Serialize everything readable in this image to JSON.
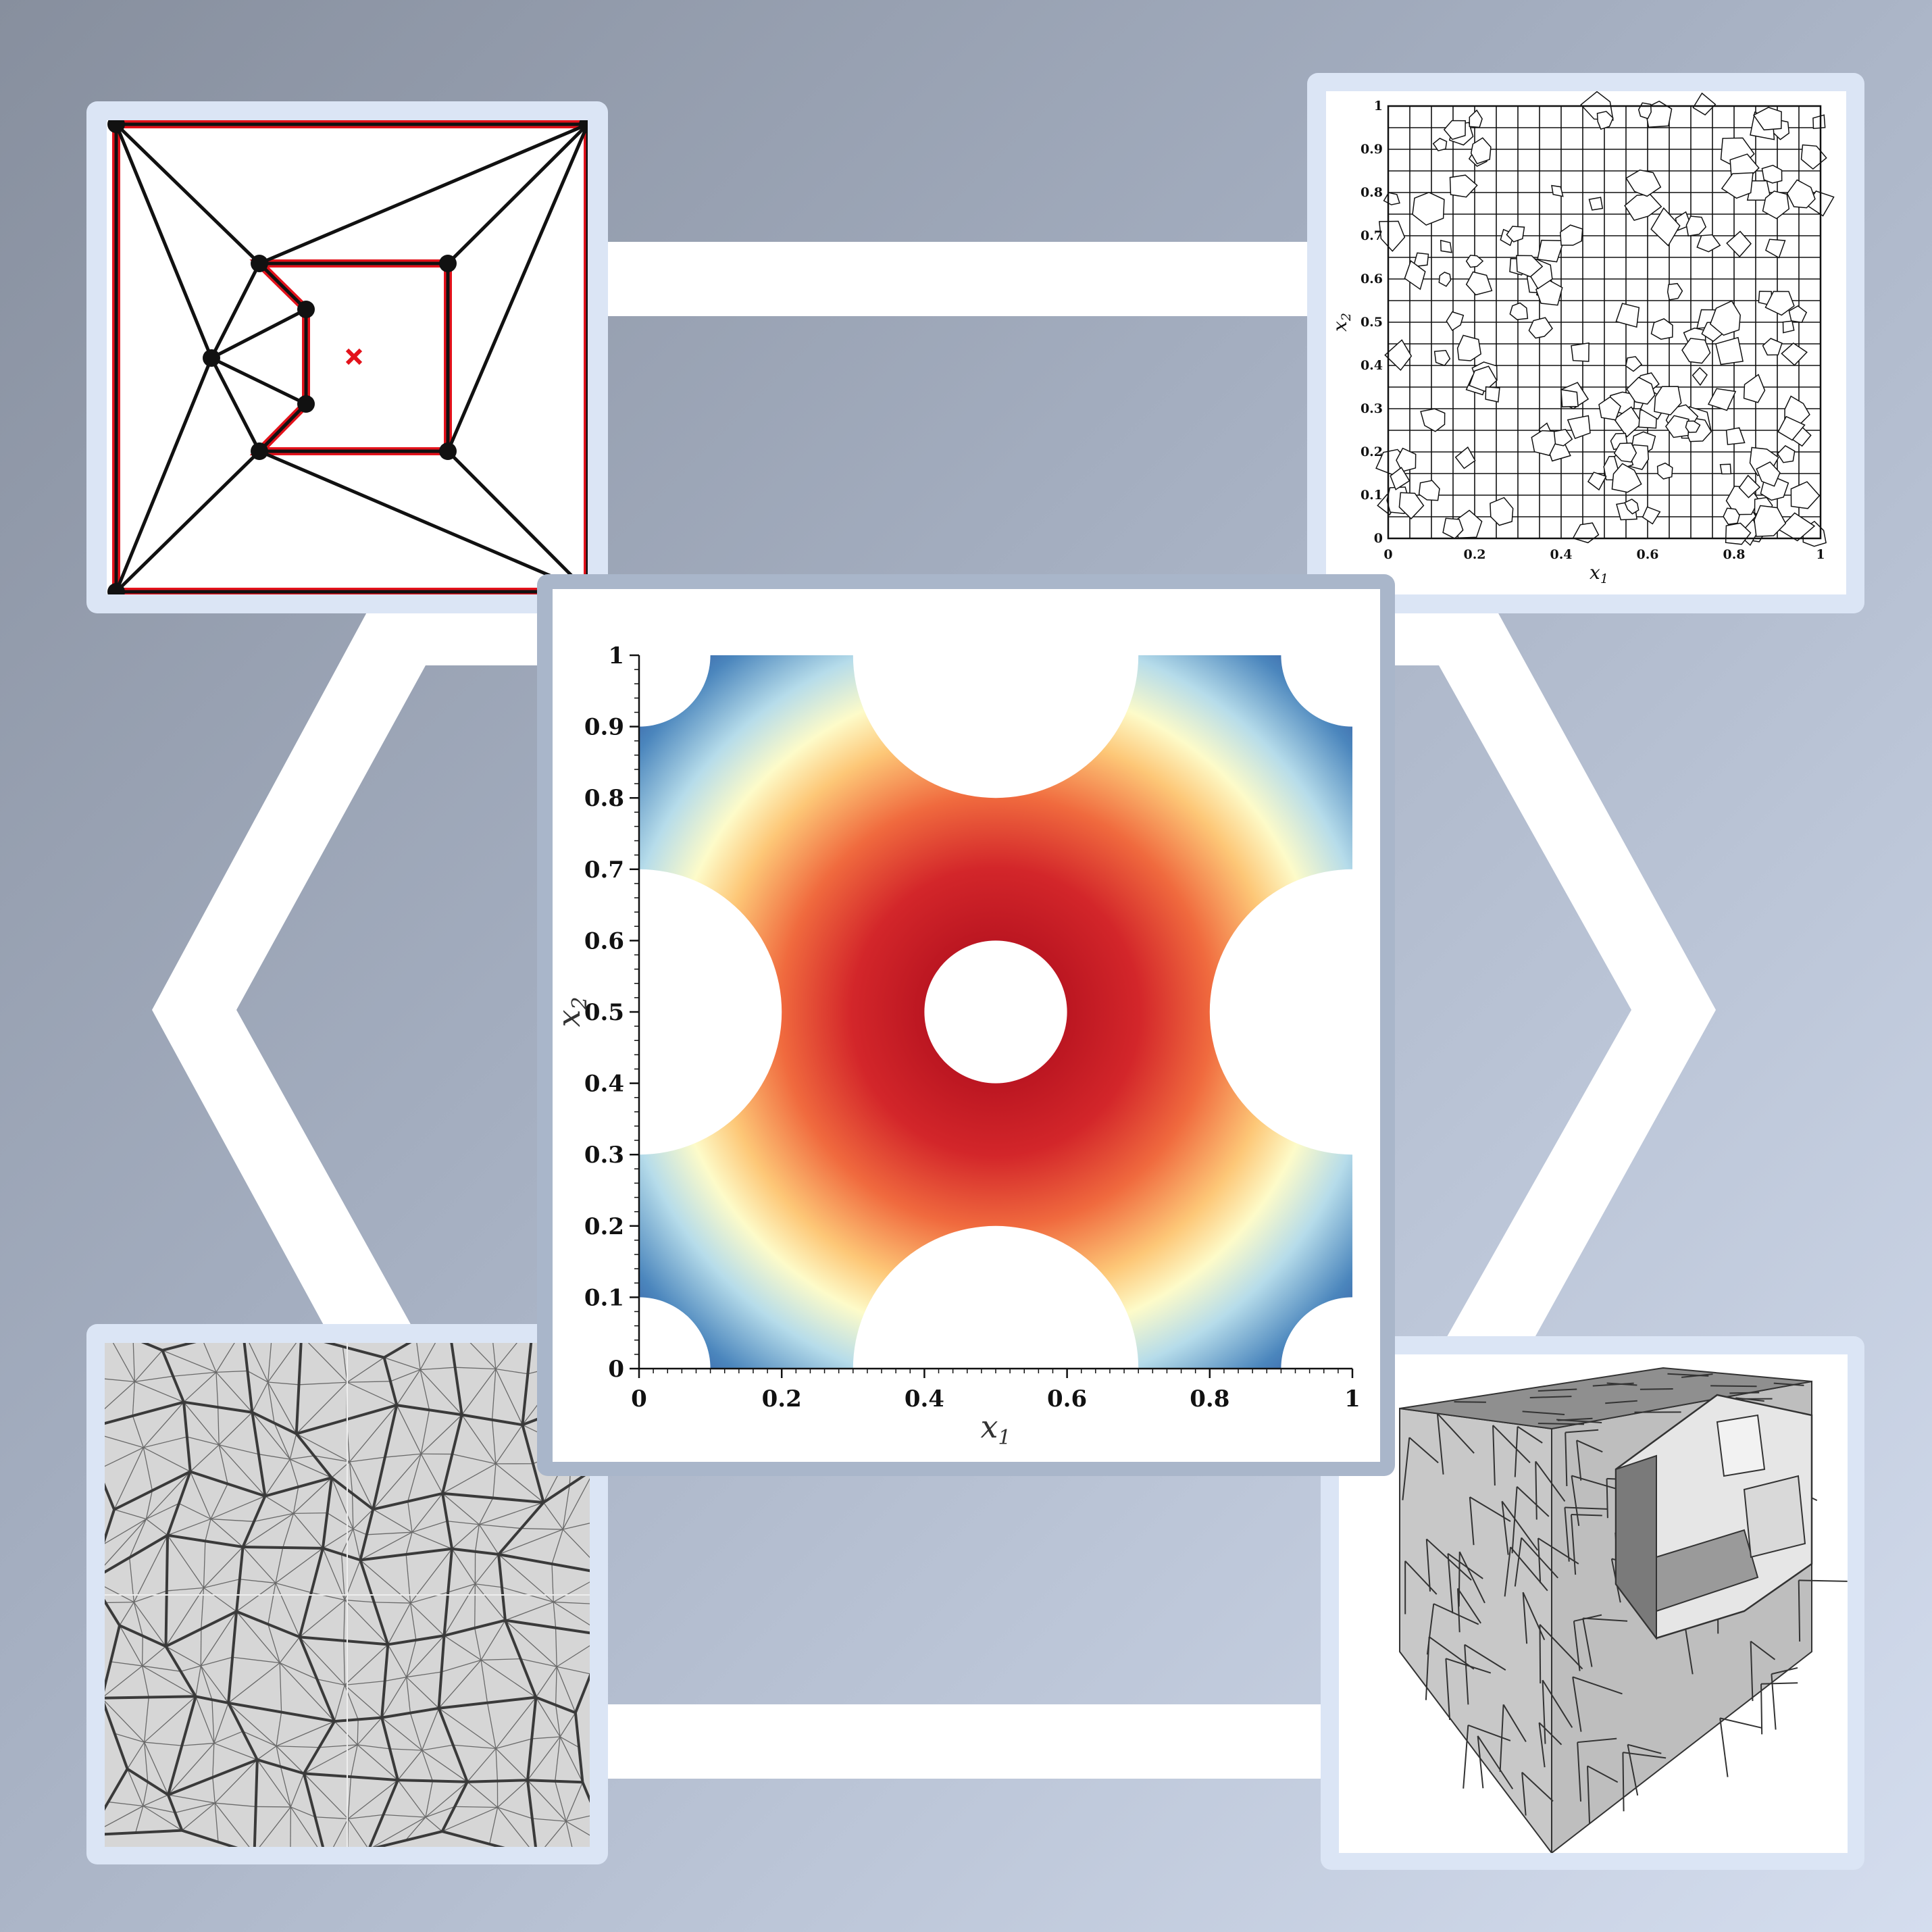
{
  "colors": {
    "frame": "#dbe5f5",
    "center_frame": "#a9b6ca",
    "outline": "#ffffff",
    "polygon_edge": "#e3121b",
    "marker": "#e3121b",
    "colormap": [
      "#2a3f94",
      "#4b86bd",
      "#a6d3e6",
      "#fdfbc9",
      "#fdbd6e",
      "#ea5a39",
      "#b5121f"
    ]
  },
  "icons": {
    "point": "black-vertex-dot-icon",
    "cross": "red-cross-marker-icon"
  },
  "top_right_plot": {
    "x_ticks": [
      "0",
      "0.2",
      "0.4",
      "0.6",
      "0.8",
      "1"
    ],
    "y_ticks": [
      "0",
      "0.1",
      "0.2",
      "0.3",
      "0.4",
      "0.5",
      "0.6",
      "0.7",
      "0.8",
      "0.9",
      "1"
    ],
    "xlabel": "x",
    "xlabel_sub": "1",
    "ylabel": "x",
    "ylabel_sub": "2"
  },
  "center_plot": {
    "x_ticks": [
      "0",
      "0.2",
      "0.4",
      "0.6",
      "0.8",
      "1"
    ],
    "y_ticks": [
      "0",
      "0.1",
      "0.2",
      "0.3",
      "0.4",
      "0.5",
      "0.6",
      "0.7",
      "0.8",
      "0.9",
      "1"
    ],
    "xlabel": "x",
    "xlabel_sub": "1",
    "ylabel": "x",
    "ylabel_sub": "2",
    "domain": {
      "holes": [
        {
          "cx": 0.5,
          "cy": 0.5,
          "r": 0.1
        },
        {
          "cx": 0.5,
          "cy": 1.0,
          "r": 0.2
        },
        {
          "cx": 0.5,
          "cy": 0.0,
          "r": 0.2
        },
        {
          "cx": 0.0,
          "cy": 0.5,
          "r": 0.2
        },
        {
          "cx": 1.0,
          "cy": 0.5,
          "r": 0.2
        },
        {
          "cx": 0.0,
          "cy": 0.0,
          "r": 0.1
        },
        {
          "cx": 1.0,
          "cy": 0.0,
          "r": 0.1
        },
        {
          "cx": 0.0,
          "cy": 1.0,
          "r": 0.1
        },
        {
          "cx": 1.0,
          "cy": 1.0,
          "r": 0.1
        }
      ]
    }
  }
}
